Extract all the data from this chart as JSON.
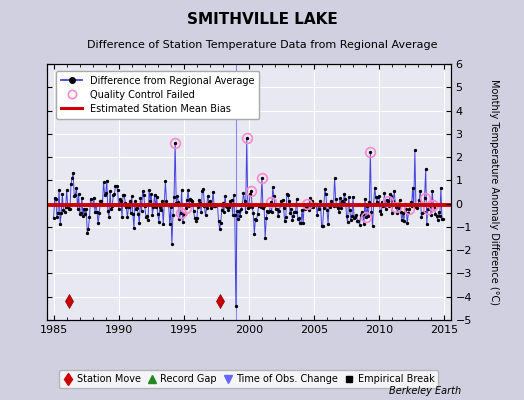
{
  "title": "SMITHVILLE LAKE",
  "subtitle": "Difference of Station Temperature Data from Regional Average",
  "ylabel": "Monthly Temperature Anomaly Difference (°C)",
  "xlim": [
    1984.5,
    2015.5
  ],
  "ylim": [
    -5,
    6
  ],
  "yticks": [
    -5,
    -4,
    -3,
    -2,
    -1,
    0,
    1,
    2,
    3,
    4,
    5,
    6
  ],
  "xticks": [
    1985,
    1990,
    1995,
    2000,
    2005,
    2010,
    2015
  ],
  "bias_value": -0.05,
  "station_moves": [
    1986.2,
    1997.75
  ],
  "obs_changes": [
    1999.0
  ],
  "bg_color": "#e8e8f2",
  "outer_bg": "#d0d0e0",
  "grid_color": "#ffffff",
  "line_color": "#4444dd",
  "bias_color": "#cc0000",
  "qc_color": "#ff88cc",
  "watermark": "Berkeley Earth",
  "title_fontsize": 11,
  "subtitle_fontsize": 8,
  "tick_labelsize": 8,
  "legend_fontsize": 7
}
